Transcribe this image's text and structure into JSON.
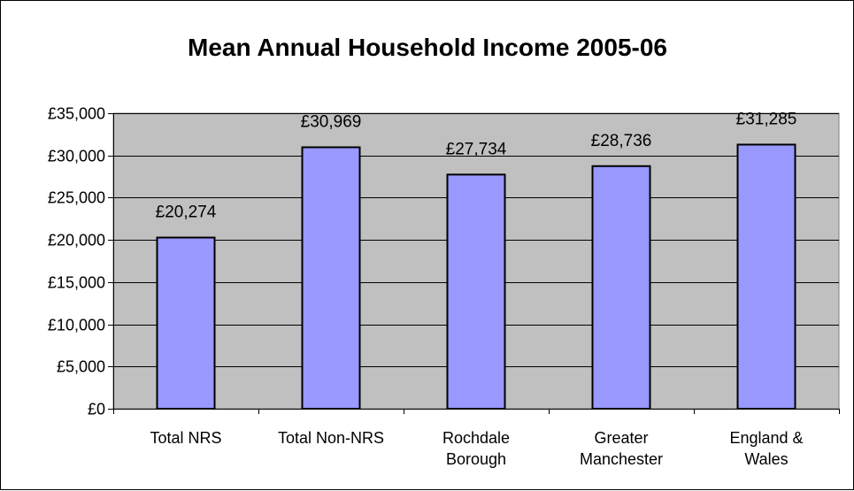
{
  "chart_data": {
    "type": "bar",
    "title": "Mean Annual Household Income 2005-06",
    "xlabel": "",
    "ylabel": "",
    "categories": [
      [
        "Total NRS"
      ],
      [
        "Total Non-NRS"
      ],
      [
        "Rochdale",
        "Borough"
      ],
      [
        "Greater",
        "Manchester"
      ],
      [
        "England &",
        "Wales"
      ]
    ],
    "values": [
      20274,
      30969,
      27734,
      28736,
      31285
    ],
    "data_labels": [
      "£20,274",
      "£30,969",
      "£27,734",
      "£28,736",
      "£31,285"
    ],
    "ylim": [
      0,
      35000
    ],
    "yticks": [
      0,
      5000,
      10000,
      15000,
      20000,
      25000,
      30000,
      35000
    ],
    "ytick_labels": [
      "£0",
      "£5,000",
      "£10,000",
      "£15,000",
      "£20,000",
      "£25,000",
      "£30,000",
      "£35,000"
    ],
    "grid": true,
    "legend": "none",
    "colors": {
      "bar_fill": "#9999ff",
      "bar_stroke": "#000000",
      "plot_background": "#c0c0c0",
      "gridline": "#000000"
    }
  }
}
